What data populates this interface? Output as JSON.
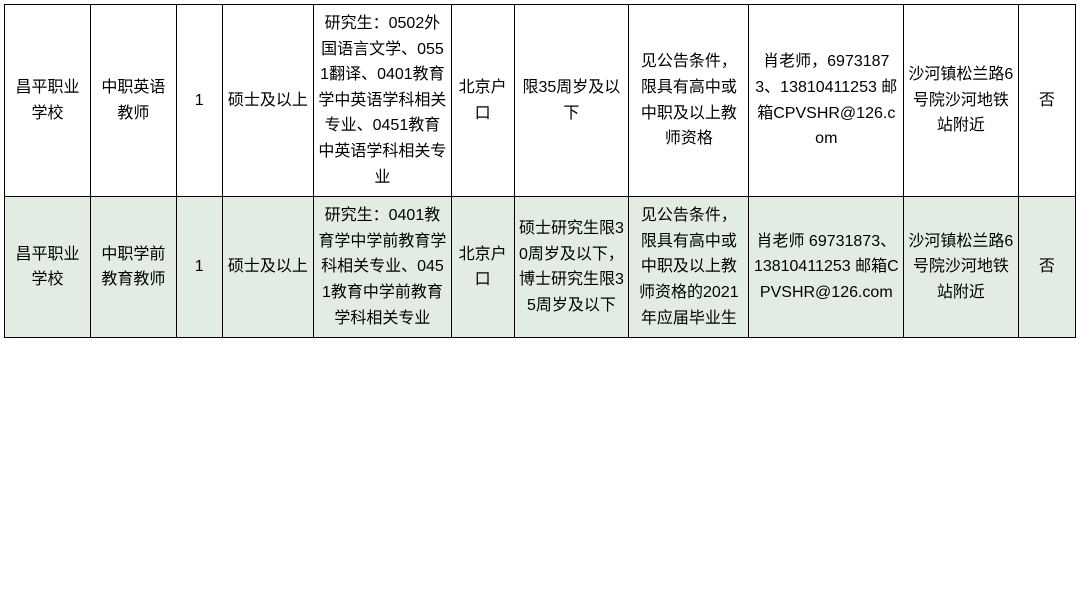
{
  "table": {
    "background_color": "#ffffff",
    "alt_row_color": "#e3ece3",
    "border_color": "#000000",
    "font_size": 16,
    "text_color": "#000000",
    "column_widths_pct": [
      7.5,
      7.5,
      4,
      8,
      12,
      5.5,
      10,
      10.5,
      13.5,
      10,
      5
    ],
    "rows": [
      {
        "alt": false,
        "cells": [
          "昌平职业学校",
          "中职英语教师",
          "1",
          "硕士及以上",
          "研究生：0502外国语言文学、0551翻译、0401教育学中英语学科相关专业、0451教育中英语学科相关专业",
          "北京户口",
          "限35周岁及以下",
          "见公告条件，限具有高中或中职及以上教师资格",
          "肖老师，69731873、13810411253 邮箱CPVSHR@126.com",
          "沙河镇松兰路6号院沙河地铁站附近",
          "否"
        ]
      },
      {
        "alt": true,
        "cells": [
          "昌平职业学校",
          "中职学前教育教师",
          "1",
          "硕士及以上",
          "研究生：0401教育学中学前教育学科相关专业、0451教育中学前教育学科相关专业",
          "北京户口",
          "硕士研究生限30周岁及以下，博士研究生限35周岁及以下",
          "见公告条件，限具有高中或中职及以上教师资格的2021年应届毕业生",
          "肖老师 69731873、13810411253 邮箱CPVSHR@126.com",
          "沙河镇松兰路6号院沙河地铁站附近",
          "否"
        ]
      }
    ]
  }
}
